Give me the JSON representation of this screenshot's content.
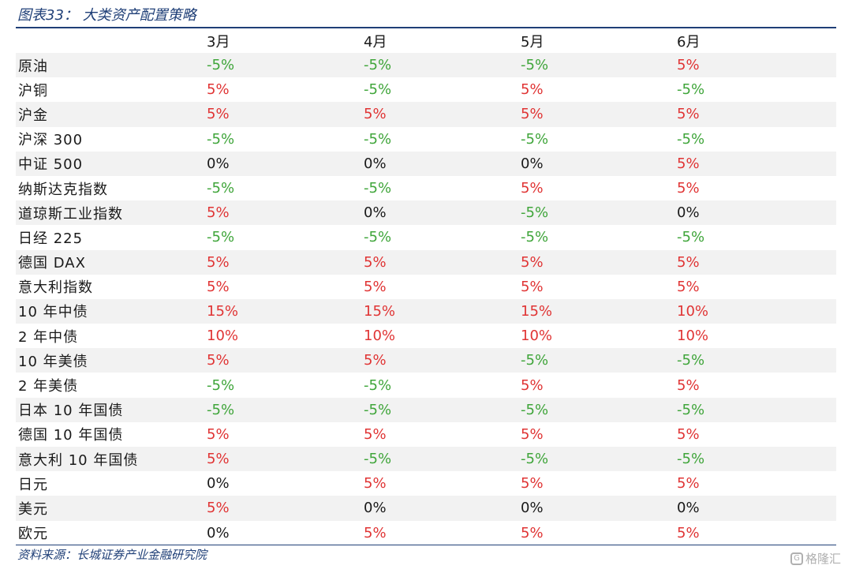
{
  "title": "图表33：  大类资产配置策略",
  "columns": [
    "3月",
    "4月",
    "5月",
    "6月"
  ],
  "colors": {
    "positive": "#e03434",
    "negative": "#3fa53a",
    "zero": "#1a1a1a",
    "accent": "#1f3f77"
  },
  "rows": [
    {
      "asset": "原油",
      "values": [
        "-5%",
        "-5%",
        "-5%",
        "5%"
      ]
    },
    {
      "asset": "沪铜",
      "values": [
        "5%",
        "-5%",
        "5%",
        "-5%"
      ]
    },
    {
      "asset": "沪金",
      "values": [
        "5%",
        "5%",
        "5%",
        "5%"
      ]
    },
    {
      "asset": "沪深 300",
      "values": [
        "-5%",
        "-5%",
        "-5%",
        "-5%"
      ]
    },
    {
      "asset": "中证 500",
      "values": [
        "0%",
        "0%",
        "0%",
        "5%"
      ]
    },
    {
      "asset": "纳斯达克指数",
      "values": [
        "-5%",
        "-5%",
        "5%",
        "5%"
      ]
    },
    {
      "asset": "道琼斯工业指数",
      "values": [
        "5%",
        "0%",
        "-5%",
        "0%"
      ]
    },
    {
      "asset": "日经 225",
      "values": [
        "-5%",
        "-5%",
        "-5%",
        "-5%"
      ]
    },
    {
      "asset": "德国 DAX",
      "values": [
        "5%",
        "5%",
        "5%",
        "5%"
      ]
    },
    {
      "asset": "意大利指数",
      "values": [
        "5%",
        "5%",
        "5%",
        "5%"
      ]
    },
    {
      "asset": "10 年中债",
      "values": [
        "15%",
        "15%",
        "15%",
        "10%"
      ]
    },
    {
      "asset": "2 年中债",
      "values": [
        "10%",
        "10%",
        "10%",
        "10%"
      ]
    },
    {
      "asset": "10 年美债",
      "values": [
        "5%",
        "5%",
        "-5%",
        "-5%"
      ]
    },
    {
      "asset": "2 年美债",
      "values": [
        "-5%",
        "-5%",
        "5%",
        "5%"
      ]
    },
    {
      "asset": "日本 10 年国债",
      "values": [
        "-5%",
        "-5%",
        "-5%",
        "-5%"
      ]
    },
    {
      "asset": "德国 10 年国债",
      "values": [
        "5%",
        "5%",
        "5%",
        "5%"
      ]
    },
    {
      "asset": "意大利 10 年国债",
      "values": [
        "5%",
        "-5%",
        "-5%",
        "-5%"
      ]
    },
    {
      "asset": "日元",
      "values": [
        "0%",
        "5%",
        "5%",
        "5%"
      ]
    },
    {
      "asset": "美元",
      "values": [
        "5%",
        "0%",
        "0%",
        "0%"
      ]
    },
    {
      "asset": "欧元",
      "values": [
        "0%",
        "5%",
        "5%",
        "5%"
      ]
    }
  ],
  "source": "资料来源：长城证券产业金融研究院",
  "watermark": {
    "icon": "g-logo-icon",
    "text": "格隆汇"
  }
}
